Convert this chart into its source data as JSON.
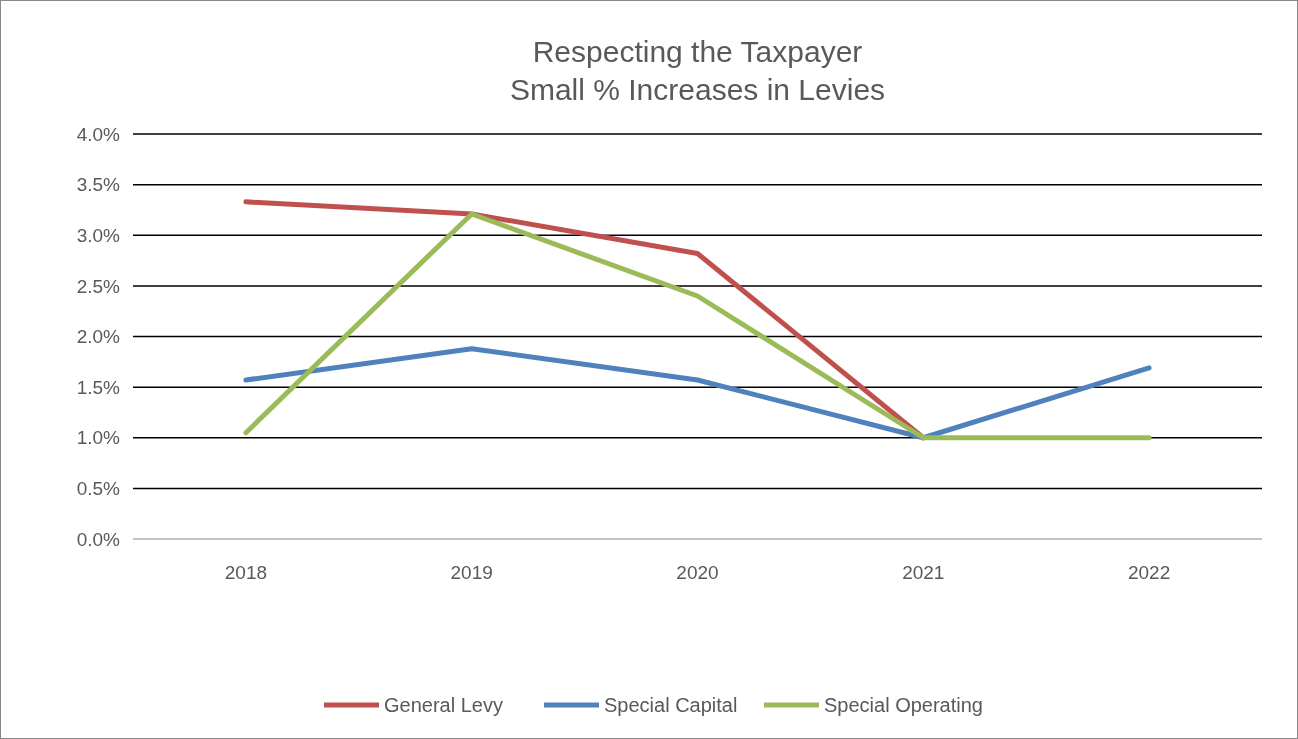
{
  "chart_data": {
    "type": "line",
    "title": "Respecting the Taxpayer\nSmall % Increases in Levies",
    "categories": [
      "2018",
      "2019",
      "2020",
      "2021",
      "2022"
    ],
    "series": [
      {
        "name": "General Levy",
        "color": "#c0504d",
        "values": [
          3.33,
          3.21,
          2.82,
          1.0,
          null
        ]
      },
      {
        "name": "Special Capital",
        "color": "#4f81bd",
        "values": [
          1.57,
          1.88,
          1.57,
          1.0,
          1.69
        ]
      },
      {
        "name": "Special Operating",
        "color": "#9bbb59",
        "values": [
          1.05,
          3.21,
          2.4,
          1.0,
          1.0
        ]
      }
    ],
    "ylim": [
      0,
      4
    ],
    "yticks": [
      {
        "value": 0,
        "label": "0.0%"
      },
      {
        "value": 0.5,
        "label": "0.5%"
      },
      {
        "value": 1,
        "label": "1.0%"
      },
      {
        "value": 1.5,
        "label": "1.5%"
      },
      {
        "value": 2,
        "label": "2.0%"
      },
      {
        "value": 2.5,
        "label": "2.5%"
      },
      {
        "value": 3,
        "label": "3.0%"
      },
      {
        "value": 3.5,
        "label": "3.5%"
      },
      {
        "value": 4,
        "label": "4.0%"
      }
    ],
    "grid": "y",
    "legend": "bottom",
    "marker": "none",
    "line_style": "solid"
  }
}
